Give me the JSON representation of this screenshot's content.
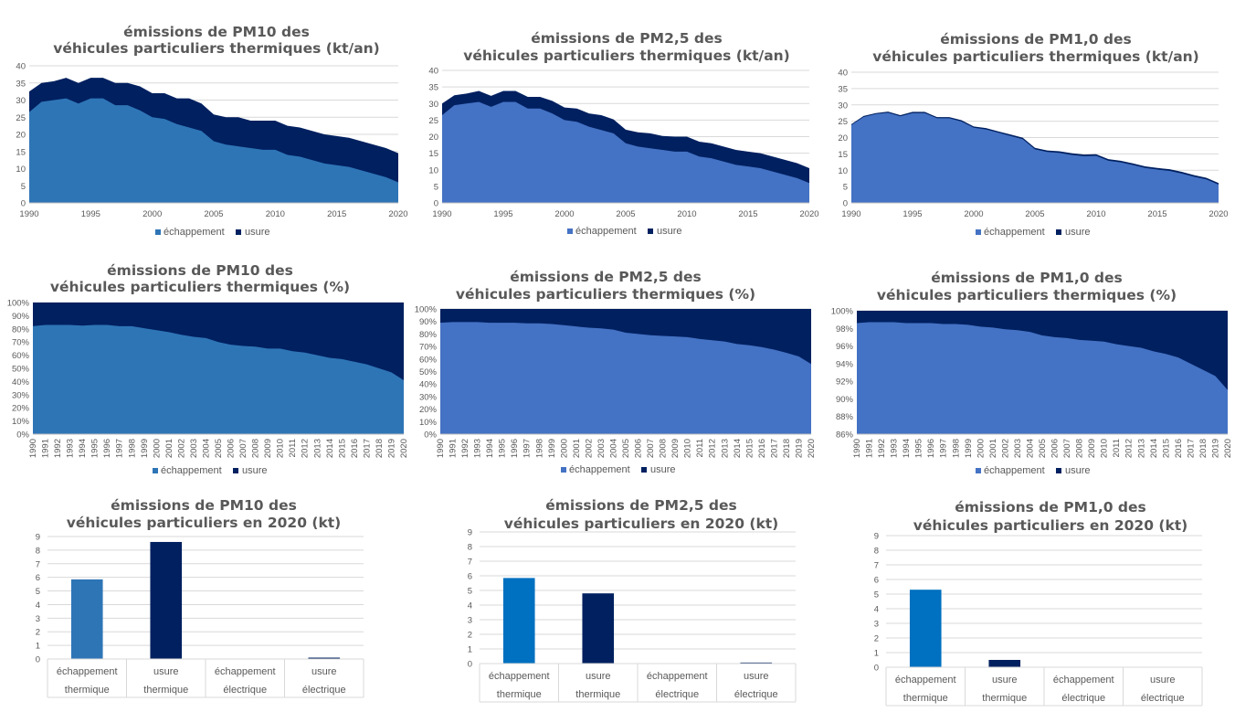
{
  "colors": {
    "echappement_area_pm10": "#2e75b6",
    "echappement_area_pm25": "#4472c4",
    "usure_area": "#002060",
    "bar_echappement_pm10": "#2e75b6",
    "bar_echappement_other": "#0070c0",
    "bar_usure": "#002060",
    "grid": "#d9d9d9",
    "text": "#595959"
  },
  "chart_data": [
    {
      "type": "area",
      "title": [
        "émissions de PM10 des",
        "véhicules particuliers thermiques (kt/an)"
      ],
      "x": [
        1990,
        1991,
        1992,
        1993,
        1994,
        1995,
        1996,
        1997,
        1998,
        1999,
        2000,
        2001,
        2002,
        2003,
        2004,
        2005,
        2006,
        2007,
        2008,
        2009,
        2010,
        2011,
        2012,
        2013,
        2014,
        2015,
        2016,
        2017,
        2018,
        2019,
        2020
      ],
      "series": [
        {
          "name": "échappement",
          "values": [
            26.5,
            29.5,
            30.0,
            30.5,
            29.0,
            30.5,
            30.5,
            28.5,
            28.5,
            27.0,
            25.0,
            24.5,
            23.0,
            22.0,
            21.0,
            18.0,
            17.0,
            16.5,
            16.0,
            15.5,
            15.5,
            14.0,
            13.5,
            12.5,
            11.5,
            11.0,
            10.5,
            9.5,
            8.5,
            7.5,
            6.0
          ]
        },
        {
          "name": "usure",
          "values": [
            6.0,
            5.5,
            5.5,
            6.0,
            6.0,
            6.0,
            6.0,
            6.5,
            6.5,
            7.0,
            7.0,
            7.5,
            7.5,
            8.5,
            8.0,
            7.8,
            8.0,
            8.5,
            8.0,
            8.5,
            8.5,
            8.5,
            8.5,
            8.5,
            8.5,
            8.5,
            8.5,
            8.5,
            8.5,
            8.5,
            8.5
          ]
        }
      ],
      "ylim": [
        0,
        40
      ],
      "yticks": [
        0,
        5,
        10,
        15,
        20,
        25,
        30,
        35,
        40
      ],
      "xticks": [
        1990,
        1995,
        2000,
        2005,
        2010,
        2015,
        2020
      ],
      "legend": "bottom"
    },
    {
      "type": "area",
      "title": [
        "émissions de PM2,5 des",
        "véhicules particuliers thermiques (kt/an)"
      ],
      "x": [
        1990,
        1991,
        1992,
        1993,
        1994,
        1995,
        1996,
        1997,
        1998,
        1999,
        2000,
        2001,
        2002,
        2003,
        2004,
        2005,
        2006,
        2007,
        2008,
        2009,
        2010,
        2011,
        2012,
        2013,
        2014,
        2015,
        2016,
        2017,
        2018,
        2019,
        2020
      ],
      "series": [
        {
          "name": "échappement",
          "values": [
            26.5,
            29.5,
            30.0,
            30.5,
            29.0,
            30.5,
            30.5,
            28.5,
            28.5,
            27.0,
            25.0,
            24.5,
            23.0,
            22.0,
            21.0,
            18.0,
            17.0,
            16.5,
            16.0,
            15.5,
            15.5,
            14.0,
            13.5,
            12.5,
            11.5,
            11.0,
            10.5,
            9.5,
            8.5,
            7.5,
            6.0
          ]
        },
        {
          "name": "usure",
          "values": [
            3.5,
            3.0,
            3.0,
            3.3,
            3.3,
            3.3,
            3.3,
            3.5,
            3.5,
            3.8,
            3.8,
            4.0,
            4.0,
            4.5,
            4.2,
            4.1,
            4.3,
            4.5,
            4.2,
            4.5,
            4.5,
            4.5,
            4.5,
            4.5,
            4.5,
            4.5,
            4.5,
            4.5,
            4.5,
            4.5,
            4.5
          ]
        }
      ],
      "ylim": [
        0,
        40
      ],
      "yticks": [
        0,
        5,
        10,
        15,
        20,
        25,
        30,
        35,
        40
      ],
      "xticks": [
        1990,
        1995,
        2000,
        2005,
        2010,
        2015,
        2020
      ],
      "legend": "bottom"
    },
    {
      "type": "area",
      "title": [
        "émissions de PM1,0 des",
        "véhicules particuliers thermiques (kt/an)"
      ],
      "x": [
        1990,
        1991,
        1992,
        1993,
        1994,
        1995,
        1996,
        1997,
        1998,
        1999,
        2000,
        2001,
        2002,
        2003,
        2004,
        2005,
        2006,
        2007,
        2008,
        2009,
        2010,
        2011,
        2012,
        2013,
        2014,
        2015,
        2016,
        2017,
        2018,
        2019,
        2020
      ],
      "series": [
        {
          "name": "échappement",
          "values": [
            23.8,
            26.3,
            27.2,
            27.6,
            26.5,
            27.5,
            27.5,
            25.9,
            25.9,
            24.9,
            23.0,
            22.5,
            21.5,
            20.5,
            19.5,
            16.4,
            15.6,
            15.3,
            14.7,
            14.3,
            14.4,
            12.9,
            12.4,
            11.6,
            10.7,
            10.2,
            9.8,
            9.0,
            8.0,
            7.2,
            5.6
          ]
        },
        {
          "name": "usure",
          "values": [
            0.3,
            0.3,
            0.3,
            0.35,
            0.35,
            0.35,
            0.35,
            0.35,
            0.35,
            0.4,
            0.4,
            0.4,
            0.4,
            0.45,
            0.45,
            0.45,
            0.45,
            0.5,
            0.5,
            0.5,
            0.5,
            0.5,
            0.5,
            0.5,
            0.5,
            0.5,
            0.5,
            0.5,
            0.5,
            0.5,
            0.5
          ]
        }
      ],
      "ylim": [
        0,
        40
      ],
      "yticks": [
        0,
        5,
        10,
        15,
        20,
        25,
        30,
        35,
        40
      ],
      "xticks": [
        1990,
        1995,
        2000,
        2005,
        2010,
        2015,
        2020
      ],
      "legend": "bottom"
    },
    {
      "type": "area",
      "stacked_percent": true,
      "title": [
        "émissions de PM10 des",
        "véhicules particuliers thermiques (%)"
      ],
      "x": [
        1990,
        1991,
        1992,
        1993,
        1994,
        1995,
        1996,
        1997,
        1998,
        1999,
        2000,
        2001,
        2002,
        2003,
        2004,
        2005,
        2006,
        2007,
        2008,
        2009,
        2010,
        2011,
        2012,
        2013,
        2014,
        2015,
        2016,
        2017,
        2018,
        2019,
        2020
      ],
      "series": [
        {
          "name": "échappement",
          "values": [
            82,
            83,
            83,
            83,
            82.5,
            83,
            83,
            82,
            82,
            80.5,
            79,
            77.5,
            75.5,
            74,
            73,
            70,
            68,
            67,
            66.5,
            65,
            65,
            63,
            62,
            60,
            58,
            57,
            55,
            53,
            50,
            47,
            41
          ]
        },
        {
          "name": "usure",
          "values": [
            18,
            17,
            17,
            17,
            17.5,
            17,
            17,
            18,
            18,
            19.5,
            21,
            22.5,
            24.5,
            26,
            27,
            30,
            32,
            33,
            33.5,
            35,
            35,
            37,
            38,
            40,
            42,
            43,
            45,
            47,
            50,
            53,
            59
          ]
        }
      ],
      "ylim": [
        0,
        100
      ],
      "yticks": [
        "0%",
        "10%",
        "20%",
        "30%",
        "40%",
        "50%",
        "60%",
        "70%",
        "80%",
        "90%",
        "100%"
      ],
      "xticks": [
        1990,
        1991,
        1992,
        1993,
        1994,
        1995,
        1996,
        1997,
        1998,
        1999,
        2000,
        2001,
        2002,
        2003,
        2004,
        2005,
        2006,
        2007,
        2008,
        2009,
        2010,
        2011,
        2012,
        2013,
        2014,
        2015,
        2016,
        2017,
        2018,
        2019,
        2020
      ],
      "legend": "bottom"
    },
    {
      "type": "area",
      "stacked_percent": true,
      "title": [
        "émissions de PM2,5 des",
        "véhicules particuliers thermiques (%)"
      ],
      "x": [
        1990,
        1991,
        1992,
        1993,
        1994,
        1995,
        1996,
        1997,
        1998,
        1999,
        2000,
        2001,
        2002,
        2003,
        2004,
        2005,
        2006,
        2007,
        2008,
        2009,
        2010,
        2011,
        2012,
        2013,
        2014,
        2015,
        2016,
        2017,
        2018,
        2019,
        2020
      ],
      "series": [
        {
          "name": "échappement",
          "values": [
            89,
            89.5,
            89.5,
            89.5,
            89,
            89,
            89,
            88.5,
            88.5,
            88,
            87,
            86,
            85,
            84.5,
            83.5,
            81,
            80,
            79,
            78.5,
            78,
            77.5,
            76,
            75,
            74,
            72,
            71,
            69.5,
            67.5,
            65,
            62,
            56
          ]
        },
        {
          "name": "usure",
          "values": [
            11,
            10.5,
            10.5,
            10.5,
            11,
            11,
            11,
            11.5,
            11.5,
            12,
            13,
            14,
            15,
            15.5,
            16.5,
            19,
            20,
            21,
            21.5,
            22,
            22.5,
            24,
            25,
            26,
            28,
            29,
            30.5,
            32.5,
            35,
            38,
            44
          ]
        }
      ],
      "ylim": [
        0,
        100
      ],
      "yticks": [
        "0%",
        "10%",
        "20%",
        "30%",
        "40%",
        "50%",
        "60%",
        "70%",
        "80%",
        "90%",
        "100%"
      ],
      "xticks": [
        1990,
        1991,
        1992,
        1993,
        1994,
        1995,
        1996,
        1997,
        1998,
        1999,
        2000,
        2001,
        2002,
        2003,
        2004,
        2005,
        2006,
        2007,
        2008,
        2009,
        2010,
        2011,
        2012,
        2013,
        2014,
        2015,
        2016,
        2017,
        2018,
        2019,
        2020
      ],
      "legend": "bottom"
    },
    {
      "type": "area",
      "stacked_percent": true,
      "title": [
        "émissions de PM1,0 des",
        "véhicules particuliers thermiques (%)"
      ],
      "x": [
        1990,
        1991,
        1992,
        1993,
        1994,
        1995,
        1996,
        1997,
        1998,
        1999,
        2000,
        2001,
        2002,
        2003,
        2004,
        2005,
        2006,
        2007,
        2008,
        2009,
        2010,
        2011,
        2012,
        2013,
        2014,
        2015,
        2016,
        2017,
        2018,
        2019,
        2020
      ],
      "series": [
        {
          "name": "échappement",
          "values": [
            98.6,
            98.7,
            98.7,
            98.7,
            98.6,
            98.6,
            98.6,
            98.5,
            98.5,
            98.4,
            98.2,
            98.1,
            97.9,
            97.8,
            97.6,
            97.2,
            97.0,
            96.9,
            96.7,
            96.6,
            96.5,
            96.2,
            96.0,
            95.8,
            95.4,
            95.1,
            94.7,
            94.0,
            93.3,
            92.6,
            91.0
          ]
        },
        {
          "name": "usure",
          "values": [
            1.4,
            1.3,
            1.3,
            1.3,
            1.4,
            1.4,
            1.4,
            1.5,
            1.5,
            1.6,
            1.8,
            1.9,
            2.1,
            2.2,
            2.4,
            2.8,
            3.0,
            3.1,
            3.3,
            3.4,
            3.5,
            3.8,
            4.0,
            4.2,
            4.6,
            4.9,
            5.3,
            6.0,
            6.7,
            7.4,
            9.0
          ]
        }
      ],
      "ylim": [
        86,
        100
      ],
      "yticks": [
        "86%",
        "88%",
        "90%",
        "92%",
        "94%",
        "96%",
        "98%",
        "100%"
      ],
      "xticks": [
        1990,
        1991,
        1992,
        1993,
        1994,
        1995,
        1996,
        1997,
        1998,
        1999,
        2000,
        2001,
        2002,
        2003,
        2004,
        2005,
        2006,
        2007,
        2008,
        2009,
        2010,
        2011,
        2012,
        2013,
        2014,
        2015,
        2016,
        2017,
        2018,
        2019,
        2020
      ],
      "legend": "bottom"
    },
    {
      "type": "bar",
      "title": [
        "émissions de PM10 des",
        "véhicules particuliers en 2020 (kt)"
      ],
      "categories": [
        [
          "échappement",
          "thermique"
        ],
        [
          "usure",
          "thermique"
        ],
        [
          "échappement",
          "électrique"
        ],
        [
          "usure",
          "électrique"
        ]
      ],
      "values": [
        5.85,
        8.6,
        0.0,
        0.1
      ],
      "bar_colors": [
        "#2e75b6",
        "#002060",
        "#2e75b6",
        "#002060"
      ],
      "ylim": [
        0,
        9
      ],
      "yticks": [
        0,
        1,
        2,
        3,
        4,
        5,
        6,
        7,
        8,
        9
      ]
    },
    {
      "type": "bar",
      "title": [
        "émissions de PM2,5 des",
        "véhicules particuliers en 2020 (kt)"
      ],
      "categories": [
        [
          "échappement",
          "thermique"
        ],
        [
          "usure",
          "thermique"
        ],
        [
          "échappement",
          "électrique"
        ],
        [
          "usure",
          "électrique"
        ]
      ],
      "values": [
        5.85,
        4.8,
        0.0,
        0.07
      ],
      "bar_colors": [
        "#0070c0",
        "#002060",
        "#0070c0",
        "#002060"
      ],
      "ylim": [
        0,
        9
      ],
      "yticks": [
        0,
        1,
        2,
        3,
        4,
        5,
        6,
        7,
        8,
        9
      ]
    },
    {
      "type": "bar",
      "title": [
        "émissions de PM1,0 des",
        "véhicules particuliers en 2020 (kt)"
      ],
      "categories": [
        [
          "échappement",
          "thermique"
        ],
        [
          "usure",
          "thermique"
        ],
        [
          "échappement",
          "électrique"
        ],
        [
          "usure",
          "électrique"
        ]
      ],
      "values": [
        5.3,
        0.5,
        0.0,
        0.0
      ],
      "bar_colors": [
        "#0070c0",
        "#002060",
        "#0070c0",
        "#002060"
      ],
      "ylim": [
        0,
        9
      ],
      "yticks": [
        0,
        1,
        2,
        3,
        4,
        5,
        6,
        7,
        8,
        9
      ]
    }
  ]
}
